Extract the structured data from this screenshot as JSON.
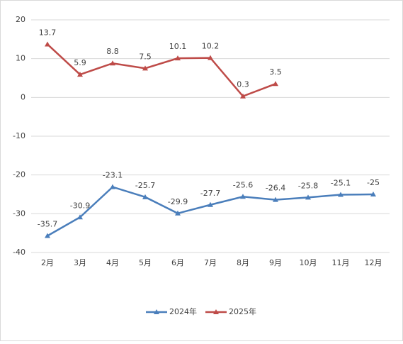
{
  "chart_data": {
    "type": "line",
    "categories": [
      "2月",
      "3月",
      "4月",
      "5月",
      "6月",
      "7月",
      "8月",
      "9月",
      "10月",
      "11月",
      "12月"
    ],
    "series": [
      {
        "name": "2024年",
        "color": "#4a7ebb",
        "values": [
          -35.7,
          -30.9,
          -23.1,
          -25.7,
          -29.9,
          -27.7,
          -25.6,
          -26.4,
          -25.8,
          -25.1,
          -25.0
        ]
      },
      {
        "name": "2025年",
        "color": "#be4b48",
        "values": [
          13.7,
          5.9,
          8.8,
          7.5,
          10.1,
          10.2,
          0.3,
          3.5,
          null,
          null,
          null
        ]
      }
    ],
    "ylim": [
      -40,
      20
    ],
    "yticks": [
      -40,
      -30,
      -20,
      -10,
      0,
      10,
      20
    ],
    "grid": true,
    "legend": "bottom"
  }
}
